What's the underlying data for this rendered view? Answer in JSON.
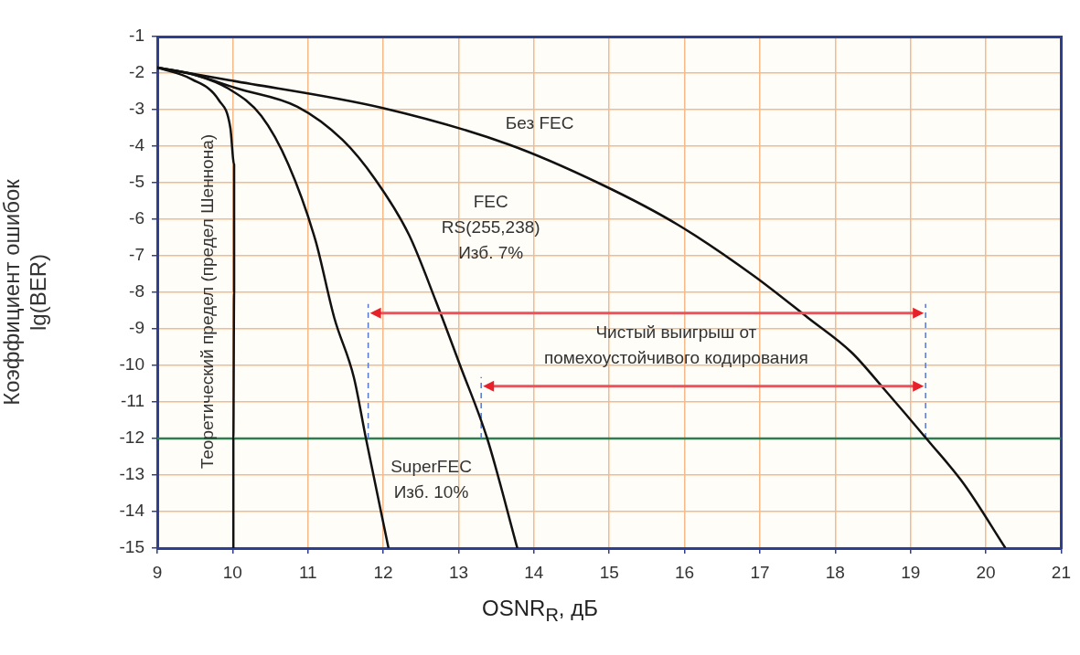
{
  "chart_data": {
    "type": "line",
    "xlabel": "OSNR$_{R}$, дБ",
    "ylabel": "Коэффициент ошибок\nlg(BER)",
    "xlim": [
      9,
      21
    ],
    "xticks": [
      9,
      10,
      11,
      12,
      13,
      14,
      15,
      16,
      17,
      18,
      19,
      20,
      21
    ],
    "ylim": [
      -15,
      -1
    ],
    "yticks": [
      -15,
      -14,
      -13,
      -12,
      -11,
      -10,
      -9,
      -8,
      -7,
      -6,
      -5,
      -4,
      -3,
      -2,
      -1
    ],
    "grid": true,
    "legend": false,
    "marker": "none",
    "line_style": "solid",
    "series": [
      {
        "name": "Теоретический предел (предел Шеннона)",
        "color": "#111111",
        "x": [
          9,
          9.46,
          9.82,
          9.97,
          10.02,
          10.02,
          10.01,
          10.01
        ],
        "values": [
          -1.85,
          -2.17,
          -2.75,
          -3.5,
          -4.5,
          -8,
          -12,
          -15
        ]
      },
      {
        "name": "SuperFEC\nИзб. 10%",
        "color": "#111111",
        "x": [
          9,
          9.5,
          9.94,
          10.38,
          10.74,
          11.1,
          11.35,
          11.61,
          11.77,
          12.07
        ],
        "values": [
          -1.85,
          -2.05,
          -2.42,
          -3.17,
          -4.5,
          -6.58,
          -8.7,
          -10.33,
          -12,
          -15
        ]
      },
      {
        "name": "FEC\nRS(255,238)\nИзб. 7%",
        "color": "#111111",
        "x": [
          9,
          9.5,
          10.06,
          10.86,
          11.46,
          11.89,
          12.34,
          12.7,
          13.02,
          13.38,
          13.78
        ],
        "values": [
          -1.85,
          -2.05,
          -2.42,
          -2.92,
          -3.83,
          -4.9,
          -6.42,
          -8.25,
          -10,
          -12,
          -15
        ]
      },
      {
        "name": "Без FEC",
        "color": "#111111",
        "x": [
          9,
          9.97,
          11.98,
          13.66,
          14.9,
          15.91,
          16.92,
          17.64,
          18.22,
          18.65,
          19.23,
          19.71,
          20.26
        ],
        "values": [
          -1.85,
          -2.2,
          -2.95,
          -3.95,
          -5.05,
          -6.15,
          -7.55,
          -8.7,
          -9.65,
          -10.65,
          -12.05,
          -13.25,
          -15
        ]
      }
    ],
    "ref_lines": [
      {
        "axis": "y",
        "value": -12,
        "color": "#2e7d4f",
        "line_style": "solid"
      },
      {
        "axis": "x",
        "value": 11.8,
        "color": "#5577cc",
        "line_style": "dashed"
      },
      {
        "axis": "x",
        "value": 13.3,
        "color": "#5577cc",
        "line_style": "dashed"
      },
      {
        "axis": "x",
        "value": 19.2,
        "color": "#5577cc",
        "line_style": "dashed"
      }
    ],
    "annotations": [
      "Чистый выигрыш от\nпомехоустойчивого кодирования"
    ]
  }
}
